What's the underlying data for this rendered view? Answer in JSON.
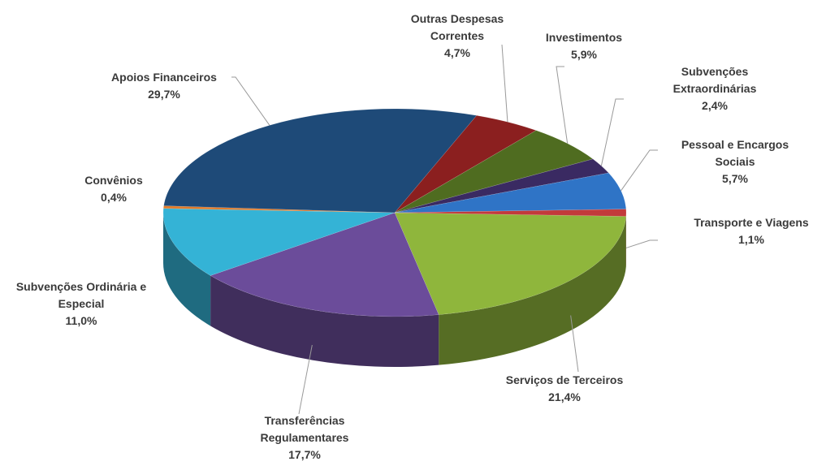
{
  "chart_data": {
    "type": "pie3d",
    "categories": [
      "Serviços de Terceiros",
      "Transferências Regulamentares",
      "Subvenções Ordinária e Especial",
      "Convênios",
      "Apoios Financeiros",
      "Outras Despesas Correntes",
      "Investimentos",
      "Subvenções Extraordinárias",
      "Pessoal e Encargos Sociais",
      "Transporte e Viagens"
    ],
    "values": [
      21.4,
      17.7,
      11.0,
      0.4,
      29.7,
      4.7,
      5.9,
      2.4,
      5.7,
      1.1
    ],
    "value_labels": [
      "21,4%",
      "17,7%",
      "11,0%",
      "0,4%",
      "29,7%",
      "4,7%",
      "5,9%",
      "2,4%",
      "5,7%",
      "1,1%"
    ],
    "colors": [
      "#8fb63c",
      "#6b4c9a",
      "#34b3d6",
      "#e07b2a",
      "#1e4a78",
      "#8b1f1f",
      "#4f6c20",
      "#3a2a62",
      "#2f74c6",
      "#c23a3b"
    ]
  }
}
